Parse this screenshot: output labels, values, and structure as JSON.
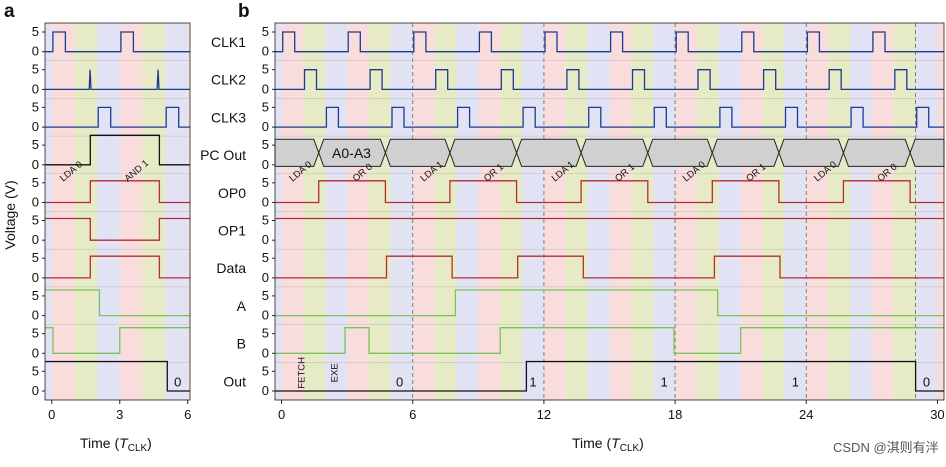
{
  "chart_data": [
    {
      "type": "line",
      "panel": "a",
      "title": "",
      "xlabel": "Time (T_CLK)",
      "xlabel_main": "Time (",
      "xlabel_T": "T",
      "xlabel_sub": "CLK",
      "xlabel_close": ")",
      "ylabel": "Voltage (V)",
      "xlim": [
        -0.3,
        6.1
      ],
      "xticks": [
        0,
        3,
        6
      ],
      "phase_colors": [
        "#f7d2d2",
        "#dde3b1",
        "#d8d8f2"
      ],
      "series": [
        {
          "name": "CLK1",
          "color": "#1b3c8f",
          "x": [
            -0.3,
            0.05,
            0.05,
            0.6,
            0.6,
            3.05,
            3.05,
            3.6,
            3.6,
            6.1
          ],
          "y": [
            0,
            0,
            5,
            5,
            0,
            0,
            5,
            5,
            0,
            0
          ]
        },
        {
          "name": "CLK2",
          "color": "#1b3c8f",
          "x": [
            -0.3,
            1.65,
            1.69,
            1.73,
            4.65,
            4.69,
            4.73,
            6.1
          ],
          "y": [
            0,
            0,
            5,
            0,
            0,
            5,
            0,
            0
          ]
        },
        {
          "name": "CLK3",
          "color": "#1b3c8f",
          "x": [
            -0.3,
            2.05,
            2.05,
            2.6,
            2.6,
            5.05,
            5.05,
            5.6,
            5.6,
            6.1
          ],
          "y": [
            0,
            0,
            5,
            5,
            0,
            0,
            5,
            5,
            0,
            0
          ]
        },
        {
          "name": "PC",
          "color": "#111111",
          "x": [
            -0.3,
            1.7,
            1.7,
            4.75,
            4.75,
            6.1
          ],
          "y": [
            0,
            0,
            7.5,
            7.5,
            0,
            0
          ]
        },
        {
          "name": "OP0",
          "color": "#b03030",
          "x": [
            -0.3,
            1.7,
            1.7,
            4.75,
            4.75,
            6.1
          ],
          "y": [
            0,
            0,
            5.5,
            5.5,
            0,
            0
          ]
        },
        {
          "name": "OP1",
          "color": "#b03030",
          "x": [
            -0.3,
            1.7,
            1.7,
            4.75,
            4.75,
            6.1
          ],
          "y": [
            5.5,
            5.5,
            0,
            0,
            5.5,
            5.5
          ]
        },
        {
          "name": "Data",
          "color": "#b03030",
          "x": [
            -0.3,
            1.7,
            1.7,
            4.75,
            4.75,
            6.1
          ],
          "y": [
            0,
            0,
            5.5,
            5.5,
            0,
            0
          ]
        },
        {
          "name": "A",
          "color": "#7cc25b",
          "x": [
            -0.3,
            2.1,
            2.1,
            6.1
          ],
          "y": [
            6.5,
            6.5,
            0,
            0
          ]
        },
        {
          "name": "B",
          "color": "#7cc25b",
          "x": [
            -0.3,
            0.05,
            0.05,
            3.0,
            3.0,
            6.1
          ],
          "y": [
            6.5,
            6.5,
            0,
            0,
            6.5,
            6.5
          ]
        },
        {
          "name": "Out",
          "color": "#111111",
          "x": [
            -0.3,
            5.1,
            5.1,
            6.1
          ],
          "y": [
            7.5,
            7.5,
            0,
            0
          ]
        }
      ],
      "annotations": [
        "LDA 0",
        "AND 1"
      ],
      "out_label": "0"
    },
    {
      "type": "line",
      "panel": "b",
      "title": "",
      "xlabel": "Time (T_CLK)",
      "xlim": [
        -0.3,
        30.3
      ],
      "xticks": [
        0,
        6,
        12,
        18,
        24,
        30
      ],
      "dashed_x": [
        6,
        12,
        18,
        24,
        29
      ],
      "rows": [
        {
          "label": "CLK1",
          "yticks": [
            "5",
            "0"
          ]
        },
        {
          "label": "CLK2",
          "yticks": [
            "5",
            "0"
          ]
        },
        {
          "label": "CLK3",
          "yticks": [
            "5",
            "0"
          ]
        },
        {
          "label": "PC Out",
          "yticks": [
            "5",
            "0"
          ]
        },
        {
          "label": "OP0",
          "yticks": [
            "5",
            "0"
          ]
        },
        {
          "label": "OP1",
          "yticks": [
            "5",
            "0"
          ]
        },
        {
          "label": "Data",
          "yticks": [
            "5",
            "0"
          ]
        },
        {
          "label": "A",
          "yticks": [
            "5",
            "0"
          ]
        },
        {
          "label": "B",
          "yticks": [
            "5",
            "0"
          ]
        },
        {
          "label": "Out",
          "yticks": [
            "5",
            "0"
          ]
        }
      ],
      "clk_period": 3,
      "pc_label": "A0-A3",
      "op0_high": [
        [
          1.7,
          4.75
        ],
        [
          7.7,
          10.75
        ],
        [
          13.7,
          16.75
        ],
        [
          19.7,
          22.75
        ],
        [
          25.7,
          28.75
        ]
      ],
      "op_annotations": [
        "LDA 0",
        "OR 0",
        "LDA 1",
        "OR 1",
        "LDA 1",
        "OR 1",
        "LDA 0",
        "OR 1",
        "LDA 0",
        "OR 0"
      ],
      "op1_level": 5.5,
      "data_high": [
        [
          4.8,
          7.8
        ],
        [
          10.8,
          13.8
        ],
        [
          19.8,
          22.8
        ]
      ],
      "a_high": [
        [
          7.95,
          19.95
        ]
      ],
      "b_high": [
        [
          0,
          0.1
        ],
        [
          2.9,
          4.0
        ],
        [
          10.0,
          11.95
        ],
        [
          11.95,
          11.96
        ],
        [
          11.97,
          17.95
        ],
        [
          21.0,
          24.0
        ],
        [
          24.0,
          30.3
        ]
      ],
      "out_high": [
        [
          11.2,
          29.0
        ]
      ],
      "out_labels": [
        {
          "x": 5.4,
          "text": "0"
        },
        {
          "x": 11.5,
          "text": "1"
        },
        {
          "x": 17.5,
          "text": "1"
        },
        {
          "x": 23.5,
          "text": "1"
        },
        {
          "x": 29.5,
          "text": "0"
        }
      ],
      "fetch_label": "FETCH",
      "exe_label": "EXE"
    }
  ],
  "panel_labels": {
    "a": "a",
    "b": "b"
  },
  "ytick_labels": [
    "5",
    "0"
  ],
  "watermark": "CSDN @淇则有泮"
}
